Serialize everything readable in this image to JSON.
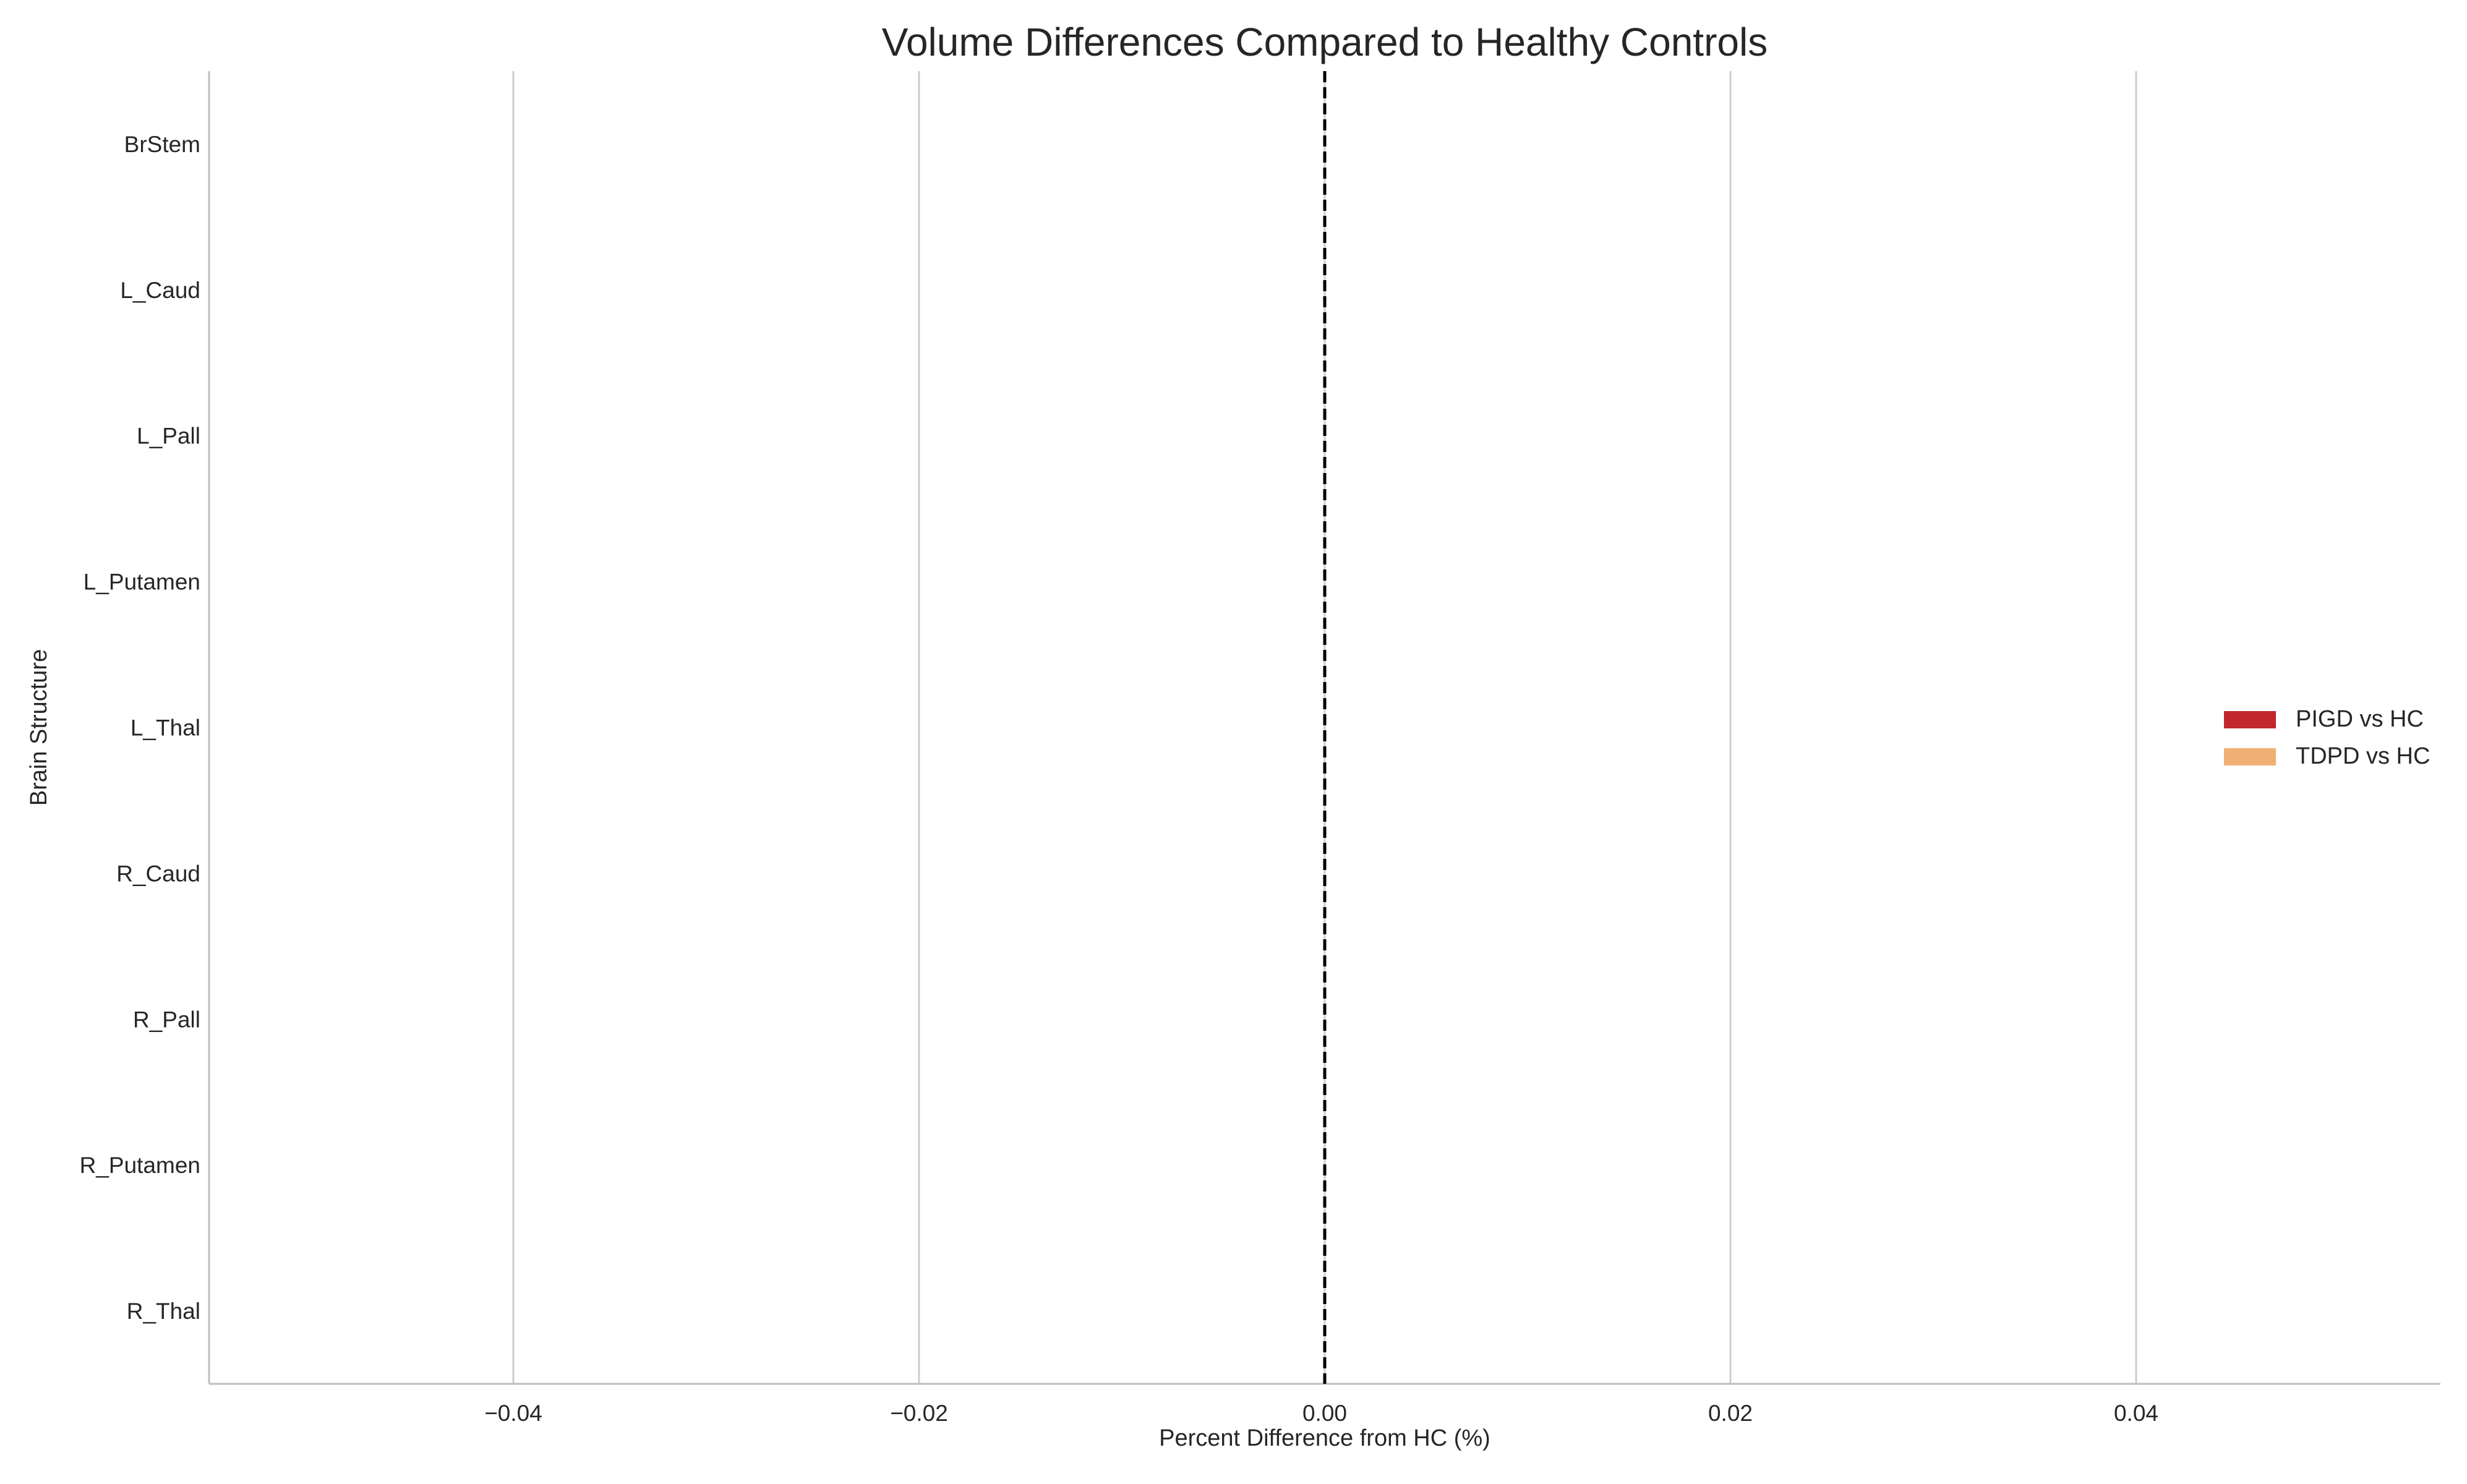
{
  "chart_data": {
    "type": "bar",
    "orientation": "horizontal",
    "title": "Volume Differences Compared to Healthy Controls",
    "xlabel": "Percent Difference from HC (%)",
    "ylabel": "Brain Structure",
    "categories": [
      "BrStem",
      "L_Caud",
      "L_Pall",
      "L_Putamen",
      "L_Thal",
      "R_Caud",
      "R_Pall",
      "R_Putamen",
      "R_Thal"
    ],
    "series": [
      {
        "name": "PIGD vs HC",
        "color": "#c1272d",
        "values": [
          0,
          0,
          0,
          0,
          0,
          0,
          0,
          0,
          0
        ]
      },
      {
        "name": "TDPD vs HC",
        "color": "#f0b074",
        "values": [
          0,
          0,
          0,
          0,
          0,
          0,
          0,
          0,
          0
        ]
      }
    ],
    "xlim": [
      -0.055,
      0.055
    ],
    "xticks": [
      -0.04,
      -0.02,
      0.0,
      0.02,
      0.04
    ],
    "xtick_labels": [
      "−0.04",
      "−0.02",
      "0.00",
      "0.02",
      "0.04"
    ],
    "reference_line": {
      "x": 0,
      "style": "dashed",
      "color": "#000000"
    },
    "grid": "x-axis vertical lines",
    "legend_position": "center-right",
    "colors": {
      "axis": "#bfbfbf",
      "grid": "#cccccc",
      "text": "#262626"
    }
  }
}
